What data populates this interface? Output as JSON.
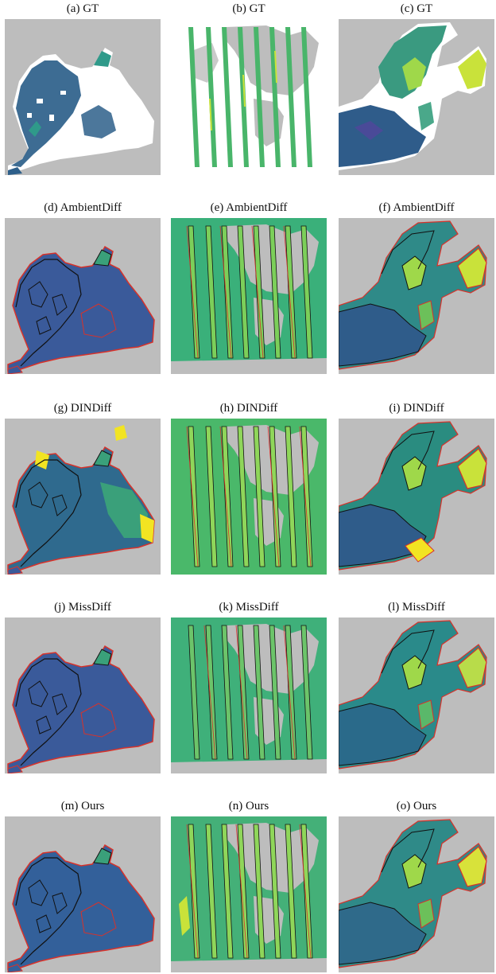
{
  "figure": {
    "rows": [
      {
        "panels": [
          {
            "caption": "(a) GT",
            "kind": "gt",
            "region": "black-sea"
          },
          {
            "caption": "(b) GT",
            "kind": "gt",
            "region": "world-swaths"
          },
          {
            "caption": "(c) GT",
            "kind": "gt",
            "region": "baltic"
          }
        ]
      },
      {
        "panels": [
          {
            "caption": "(d) AmbientDiff",
            "kind": "pred",
            "region": "black-sea"
          },
          {
            "caption": "(e) AmbientDiff",
            "kind": "pred",
            "region": "world-swaths"
          },
          {
            "caption": "(f) AmbientDiff",
            "kind": "pred",
            "region": "baltic"
          }
        ]
      },
      {
        "panels": [
          {
            "caption": "(g) DINDiff",
            "kind": "pred",
            "region": "black-sea"
          },
          {
            "caption": "(h) DINDiff",
            "kind": "pred",
            "region": "world-swaths"
          },
          {
            "caption": "(i) DINDiff",
            "kind": "pred",
            "region": "baltic"
          }
        ]
      },
      {
        "panels": [
          {
            "caption": "(j) MissDiff",
            "kind": "pred",
            "region": "black-sea"
          },
          {
            "caption": "(k) MissDiff",
            "kind": "pred",
            "region": "world-swaths"
          },
          {
            "caption": "(l) MissDiff",
            "kind": "pred",
            "region": "baltic"
          }
        ]
      },
      {
        "panels": [
          {
            "caption": "(m) Ours",
            "kind": "pred",
            "region": "black-sea"
          },
          {
            "caption": "(n) Ours",
            "kind": "pred",
            "region": "world-swaths"
          },
          {
            "caption": "(o) Ours",
            "kind": "pred",
            "region": "baltic"
          }
        ]
      }
    ],
    "colors": {
      "background": "#bdbdbd",
      "missing": "#ffffff",
      "low": "#2d5f8a",
      "mid": "#2f9a8a",
      "high": "#9fd84a",
      "peak": "#f2e422",
      "contour_obs": "#111111",
      "contour_err": "#d8322a"
    }
  }
}
